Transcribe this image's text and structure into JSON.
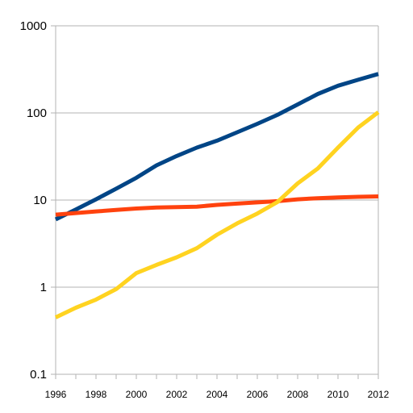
{
  "chart_data": {
    "type": "line",
    "title": "",
    "xlabel": "",
    "ylabel": "",
    "y_scale": "log",
    "ylim": [
      0.1,
      1000
    ],
    "xlim": [
      1996,
      2012
    ],
    "grid": "horizontal",
    "legend": "none",
    "y_ticks": [
      {
        "value": 1000,
        "label": "1000"
      },
      {
        "value": 100,
        "label": "100"
      },
      {
        "value": 10,
        "label": "10"
      },
      {
        "value": 1,
        "label": "1"
      },
      {
        "value": 0.1,
        "label": "0.1"
      }
    ],
    "x_ticks": [
      {
        "value": 1996,
        "label": "1996"
      },
      {
        "value": 1998,
        "label": "1998"
      },
      {
        "value": 2000,
        "label": "2000"
      },
      {
        "value": 2002,
        "label": "2002"
      },
      {
        "value": 2004,
        "label": "2004"
      },
      {
        "value": 2006,
        "label": "2006"
      },
      {
        "value": 2008,
        "label": "2008"
      },
      {
        "value": 2010,
        "label": "2010"
      },
      {
        "value": 2012,
        "label": "2012"
      }
    ],
    "x": [
      1996,
      1997,
      1998,
      1999,
      2000,
      2001,
      2002,
      2003,
      2004,
      2005,
      2006,
      2007,
      2008,
      2009,
      2010,
      2011,
      2012
    ],
    "series": [
      {
        "color": "#004586",
        "values": [
          6.0,
          7.8,
          10.2,
          13.5,
          18,
          25,
          32,
          40,
          48,
          60,
          75,
          95,
          125,
          165,
          205,
          240,
          280
        ]
      },
      {
        "color": "#ff420e",
        "values": [
          6.8,
          7.1,
          7.4,
          7.7,
          8.0,
          8.2,
          8.3,
          8.4,
          8.8,
          9.1,
          9.4,
          9.7,
          10.2,
          10.5,
          10.7,
          10.9,
          11.0
        ]
      },
      {
        "color": "#ffd320",
        "values": [
          0.45,
          0.58,
          0.72,
          0.95,
          1.45,
          1.8,
          2.2,
          2.8,
          4.0,
          5.4,
          7.0,
          9.5,
          15.5,
          23,
          40,
          68,
          102
        ]
      }
    ]
  }
}
